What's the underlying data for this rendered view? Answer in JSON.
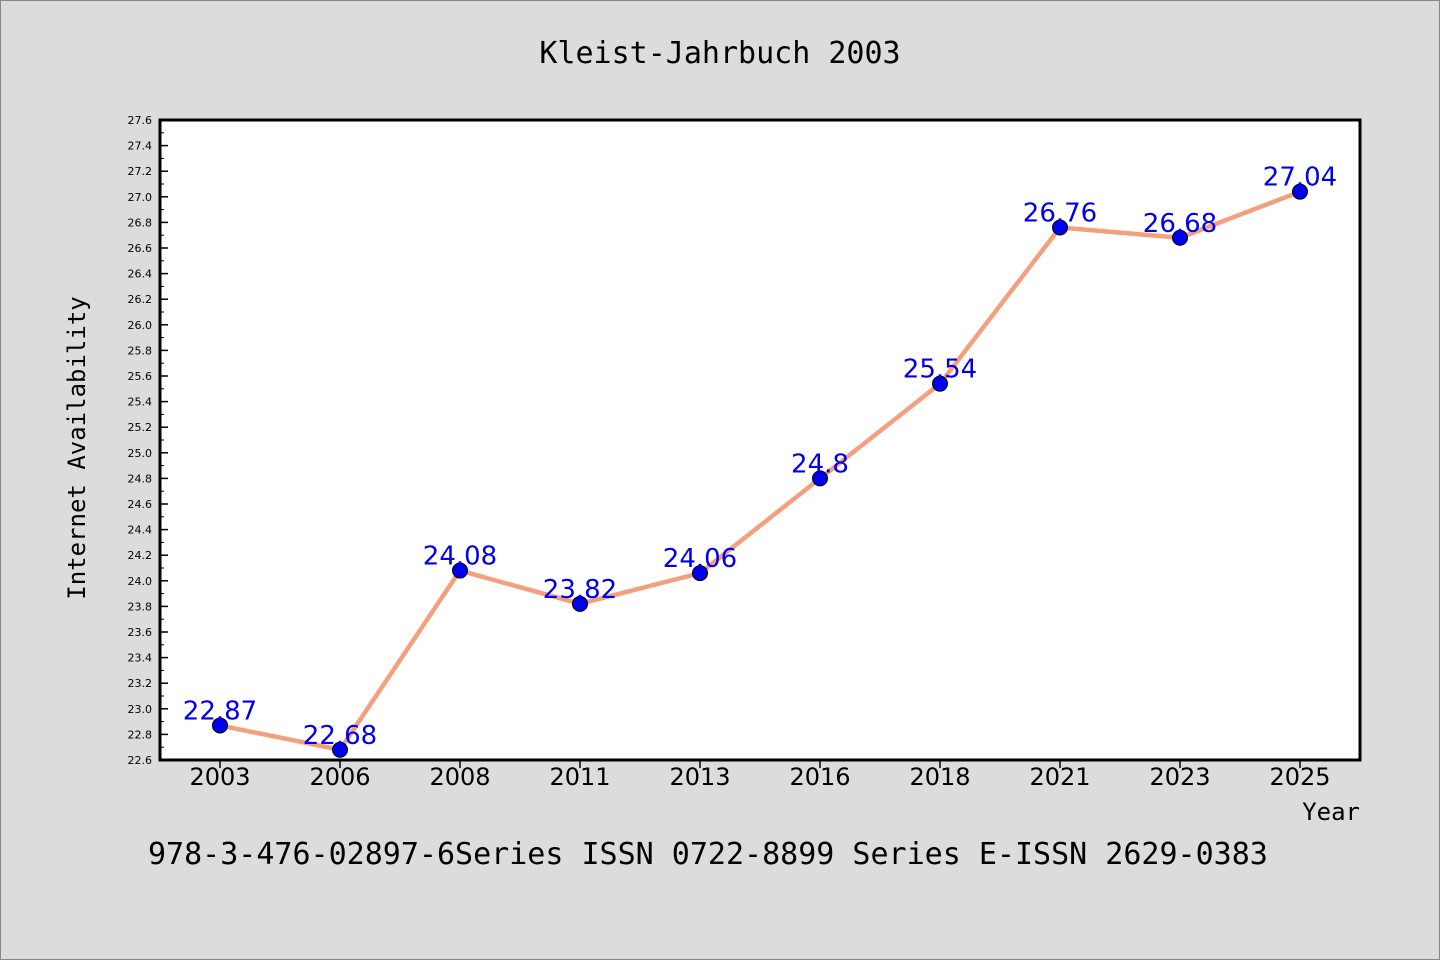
{
  "page": {
    "background": "#dcdcdc",
    "footer_text": "978-3-476-02897-6Series ISSN 0722-8899 Series E-ISSN 2629-0383"
  },
  "chart_data": {
    "type": "line",
    "title": "Kleist-Jahrbuch 2003",
    "xlabel": "Year",
    "ylabel": "Internet Availability",
    "categories": [
      "2003",
      "2006",
      "2008",
      "2011",
      "2013",
      "2016",
      "2018",
      "2021",
      "2023",
      "2025"
    ],
    "series": [
      {
        "values": [
          22.87,
          22.68,
          24.08,
          23.82,
          24.06,
          24.8,
          25.54,
          26.76,
          26.68,
          27.04
        ],
        "labels": [
          "22.87",
          "22.68",
          "24.08",
          "23.82",
          "24.06",
          "24.8",
          "25.54",
          "26.76",
          "26.68",
          "27.04"
        ],
        "line_color": "#f4a07e",
        "marker_color": "#0000ee"
      }
    ],
    "ylim": [
      22.6,
      27.6
    ],
    "yticks": [
      "22.6",
      "22.8",
      "23.0",
      "23.2",
      "23.4",
      "23.6",
      "23.8",
      "24.0",
      "24.2",
      "24.4",
      "24.6",
      "24.8",
      "25.0",
      "25.2",
      "25.4",
      "25.6",
      "25.8",
      "26.0",
      "26.2",
      "26.4",
      "26.6",
      "26.8",
      "27.0",
      "27.2",
      "27.4",
      "27.6"
    ],
    "grid": false,
    "legend": "none",
    "plot_background": "#ffffff",
    "label_color": "#0000ee"
  }
}
